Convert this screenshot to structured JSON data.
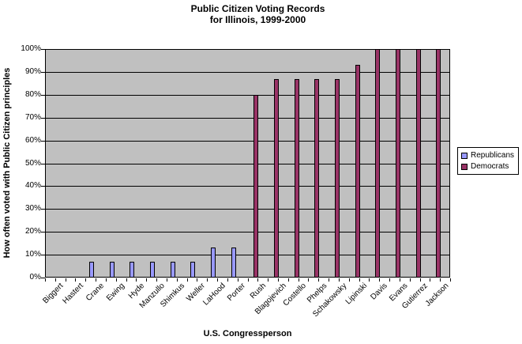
{
  "title_lines": {
    "line1": "Public Citizen Voting Records",
    "line2": "for Illinois, 1999-2000"
  },
  "chart_data": {
    "type": "bar",
    "title": "Public Citizen Voting Records for Illinois, 1999-2000",
    "xlabel": "U.S. Congressperson",
    "ylabel": "How often voted with Public Citizen principles",
    "ylim": [
      0,
      100
    ],
    "yticks": [
      0,
      10,
      20,
      30,
      40,
      50,
      60,
      70,
      80,
      90,
      100
    ],
    "ytick_suffix": "%",
    "grid": true,
    "plot_background": "#C0C0C0",
    "legend_position": "right",
    "categories": [
      "Biggert",
      "Hastert",
      "Crane",
      "Ewing",
      "Hyde",
      "Manzullo",
      "Shimkus",
      "Weller",
      "LaHood",
      "Porter",
      "Rush",
      "Blagojevich",
      "Costello",
      "Phelps",
      "Schakowsky",
      "Lipinski",
      "Davis",
      "Evans",
      "Gutierrez",
      "Jackson"
    ],
    "series": [
      {
        "name": "Republicans",
        "color": "#9999FF",
        "values": [
          0,
          0,
          7,
          7,
          7,
          7,
          7,
          7,
          13,
          13,
          0,
          0,
          0,
          0,
          0,
          0,
          0,
          0,
          0,
          0
        ]
      },
      {
        "name": "Democrats",
        "color": "#993366",
        "values": [
          0,
          0,
          0,
          0,
          0,
          0,
          0,
          0,
          0,
          0,
          80,
          87,
          87,
          87,
          87,
          93,
          100,
          100,
          100,
          100
        ]
      }
    ]
  }
}
